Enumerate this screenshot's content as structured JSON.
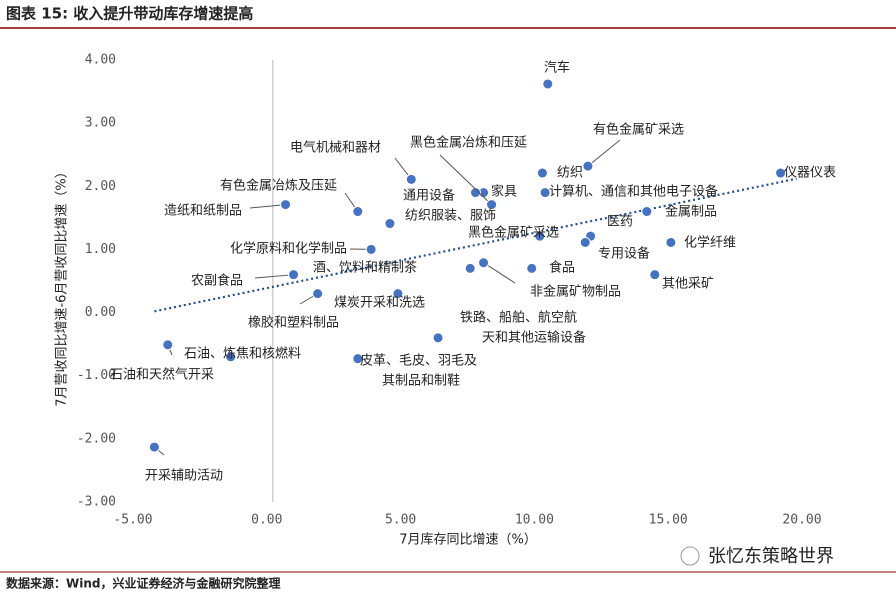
{
  "header": {
    "title": "图表 15:  收入提升带动库存增速提高"
  },
  "chart_data": {
    "type": "scatter",
    "x_label": "7月库存同比增速（%）",
    "y_label": "7月营收同比增速-6月营收同比增速（%）",
    "xlim": [
      -5,
      20
    ],
    "ylim": [
      -3,
      4
    ],
    "xticks": [
      {
        "value": -5,
        "label": "-5.00"
      },
      {
        "value": 0,
        "label": "0.00"
      },
      {
        "value": 5,
        "label": "5.00"
      },
      {
        "value": 10,
        "label": "10.00"
      },
      {
        "value": 15,
        "label": "15.00"
      },
      {
        "value": 20,
        "label": "20.00"
      }
    ],
    "yticks": [
      {
        "value": -3,
        "label": "-3.00"
      },
      {
        "value": -2,
        "label": "-2.00"
      },
      {
        "value": -1,
        "label": "-1.00"
      },
      {
        "value": 0,
        "label": "0.00"
      },
      {
        "value": 1,
        "label": "1.00"
      },
      {
        "value": 2,
        "label": "2.00"
      },
      {
        "value": 3,
        "label": "3.00"
      },
      {
        "value": 4,
        "label": "4.00"
      }
    ],
    "color": "#4472c4",
    "trend_color": "#1f4e9c",
    "trendline": {
      "x": [
        -4.2,
        19.8
      ],
      "y": [
        0.02,
        2.12
      ]
    },
    "x": [
      10.5,
      12.0,
      19.2,
      10.3,
      10.4,
      8.1,
      7.8,
      8.4,
      5.4,
      3.4,
      0.7,
      4.6,
      14.2,
      10.2,
      12.1,
      11.9,
      15.1,
      3.9,
      1.0,
      7.6,
      8.1,
      9.9,
      14.5,
      1.9,
      4.9,
      6.4,
      3.4,
      -1.35,
      -3.7,
      -4.2
    ],
    "y": [
      3.62,
      2.32,
      2.21,
      2.21,
      1.9,
      1.9,
      1.9,
      1.71,
      2.11,
      1.6,
      1.71,
      1.41,
      1.6,
      1.21,
      1.21,
      1.11,
      1.11,
      1.0,
      0.6,
      0.7,
      0.79,
      0.7,
      0.6,
      0.3,
      0.3,
      -0.4,
      -0.73,
      -0.7,
      -0.51,
      -2.13
    ],
    "labels": [
      [
        "汽车"
      ],
      [
        "有色金属矿采选"
      ],
      [
        "仪器仪表"
      ],
      [
        "纺织"
      ],
      [
        "计算机、通信和其他电子设备"
      ],
      [
        "家具"
      ],
      [
        "通用设备"
      ],
      [
        "黑色金属冶炼和压延"
      ],
      [
        "电气机械和器材"
      ],
      [
        "有色金属冶炼及压延"
      ],
      [
        "造纸和纸制品"
      ],
      [
        "纺织服装、服饰"
      ],
      [
        "金属制品"
      ],
      [
        "黑色金属矿采选"
      ],
      [
        "医药"
      ],
      [
        "专用设备"
      ],
      [
        "化学纤维"
      ],
      [
        "化学原料和化学制品"
      ],
      [
        "农副食品"
      ],
      [
        "酒、饮料和精制茶"
      ],
      [
        "非金属矿物制品"
      ],
      [
        "食品"
      ],
      [
        "其他采矿"
      ],
      [
        "橡胶和塑料制品"
      ],
      [
        "煤炭开采和洗选"
      ],
      [
        "铁路、船舶、航空航",
        "天和其他运输设备"
      ],
      [
        "皮革、毛皮、羽毛及",
        "其制品和制鞋"
      ],
      [
        "石油、炼焦和核燃料"
      ],
      [
        "石油和天然气开采"
      ],
      [
        "开采辅助活动"
      ]
    ]
  },
  "footer": {
    "source": "数据来源：Wind，兴业证券经济与金融研究院整理",
    "watermark": "张忆东策略世界"
  }
}
